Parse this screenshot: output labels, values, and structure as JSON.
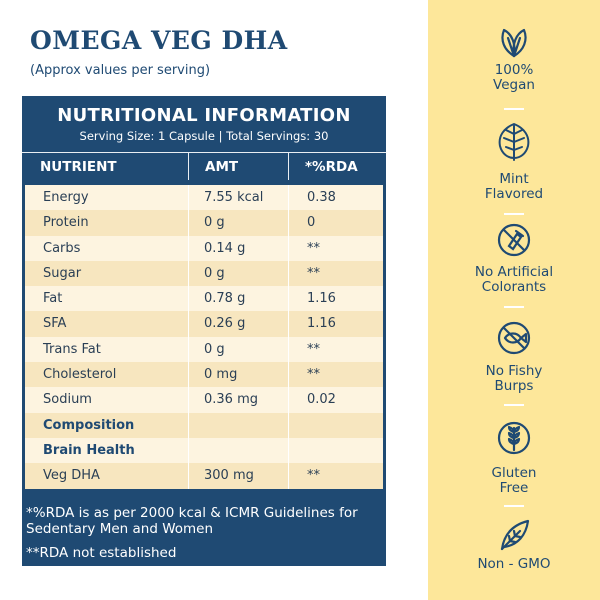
{
  "title": "OMEGA VEG DHA",
  "subtitle": "(Approx values per serving)",
  "table": {
    "heading": "NUTRITIONAL INFORMATION",
    "serving": "Serving Size: 1 Capsule | Total Servings: 30",
    "columns": [
      "NUTRIENT",
      "AMT",
      "*%RDA"
    ],
    "rows": [
      {
        "nutrient": "Energy",
        "amt": "7.55 kcal",
        "rda": "0.38"
      },
      {
        "nutrient": "Protein",
        "amt": "0 g",
        "rda": "0"
      },
      {
        "nutrient": "Carbs",
        "amt": "0.14 g",
        "rda": "**"
      },
      {
        "nutrient": "Sugar",
        "amt": "0 g",
        "rda": "**"
      },
      {
        "nutrient": "Fat",
        "amt": "0.78 g",
        "rda": "1.16"
      },
      {
        "nutrient": "SFA",
        "amt": "0.26 g",
        "rda": "1.16"
      },
      {
        "nutrient": "Trans Fat",
        "amt": "0 g",
        "rda": "**"
      },
      {
        "nutrient": "Cholesterol",
        "amt": "0 mg",
        "rda": "**"
      },
      {
        "nutrient": "Sodium",
        "amt": "0.36 mg",
        "rda": "0.02"
      },
      {
        "nutrient": "Composition",
        "amt": "",
        "rda": ""
      },
      {
        "nutrient": "Brain Health",
        "amt": "",
        "rda": ""
      },
      {
        "nutrient": "Veg DHA",
        "amt": "300 mg",
        "rda": "**"
      }
    ],
    "footnote1": "*%RDA is as per 2000 kcal & ICMR Guidelines for Sedentary Men and Women",
    "footnote2": "**RDA not established"
  },
  "features": [
    {
      "line1": "100%",
      "line2": "Vegan",
      "icon": "leaves-icon"
    },
    {
      "line1": "Mint",
      "line2": "Flavored",
      "icon": "mint-leaf-icon"
    },
    {
      "line1": "No Artificial",
      "line2": "Colorants",
      "icon": "no-colorants-icon"
    },
    {
      "line1": "No Fishy",
      "line2": "Burps",
      "icon": "no-fish-icon"
    },
    {
      "line1": "Gluten",
      "line2": "Free",
      "icon": "wheat-icon"
    },
    {
      "line1": "Non - GMO",
      "line2": "",
      "icon": "leaf-icon"
    }
  ],
  "colors": {
    "navy": "#1f4a73",
    "cream": "#fdf4e0",
    "tan": "#f7e6bf",
    "sidebar": "#fde79a"
  }
}
